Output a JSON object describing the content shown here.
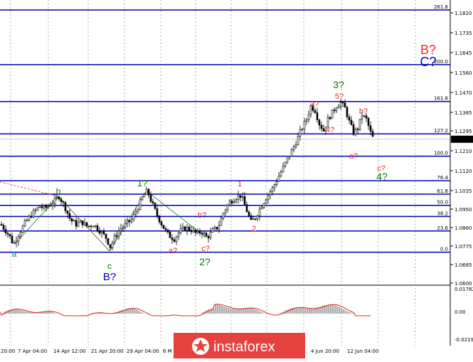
{
  "chart_data": {
    "type": "candlestick",
    "price_axis": {
      "ticks": [
        "1.1820",
        "1.1735",
        "1.1645",
        "1.1560",
        "1.1470",
        "1.1385",
        "1.1295",
        "1.1210",
        "1.1120",
        "1.1035",
        "1.0950",
        "1.0860",
        "1.0775",
        "1.0685",
        "1.0600"
      ],
      "current_price": "1.1241",
      "ylim": [
        1.056,
        1.186
      ]
    },
    "time_axis": {
      "labels": [
        "20:00",
        "7 Apr 04:00",
        "14 Apr 12:00",
        "21 Apr 20:00",
        "29 Apr 04:00",
        "6 M",
        "4 Jun 20:00",
        "12 Jun 04:00"
      ]
    },
    "fib_levels": [
      {
        "label": "261.8",
        "price": 1.182
      },
      {
        "label": "200.0",
        "price": 1.1575
      },
      {
        "label": "161.8",
        "price": 1.141
      },
      {
        "label": "127.2",
        "price": 1.1265
      },
      {
        "label": "100.0",
        "price": 1.1165
      },
      {
        "label": "76.4",
        "price": 1.1055
      },
      {
        "label": "61.8",
        "price": 1.0995
      },
      {
        "label": "50.0",
        "price": 1.0945
      },
      {
        "label": "38.2",
        "price": 1.0895
      },
      {
        "label": "23.6",
        "price": 1.083
      },
      {
        "label": "0.0",
        "price": 1.0735
      }
    ],
    "price_path": [
      [
        0,
        1.086
      ],
      [
        12,
        1.081
      ],
      [
        18,
        1.077
      ],
      [
        25,
        1.0815
      ],
      [
        35,
        1.087
      ],
      [
        45,
        1.091
      ],
      [
        55,
        1.094
      ],
      [
        62,
        1.093
      ],
      [
        72,
        1.0955
      ],
      [
        82,
        1.0985
      ],
      [
        90,
        1.094
      ],
      [
        98,
        1.088
      ],
      [
        106,
        1.086
      ],
      [
        114,
        1.087
      ],
      [
        122,
        1.085
      ],
      [
        130,
        1.086
      ],
      [
        140,
        1.083
      ],
      [
        148,
        1.08
      ],
      [
        154,
        1.076
      ],
      [
        160,
        1.08
      ],
      [
        168,
        1.084
      ],
      [
        176,
        1.086
      ],
      [
        184,
        1.088
      ],
      [
        192,
        1.093
      ],
      [
        200,
        1.0985
      ],
      [
        206,
        1.101
      ],
      [
        212,
        1.096
      ],
      [
        220,
        1.09
      ],
      [
        228,
        1.085
      ],
      [
        236,
        1.081
      ],
      [
        244,
        1.0795
      ],
      [
        252,
        1.083
      ],
      [
        260,
        1.0845
      ],
      [
        268,
        1.0835
      ],
      [
        276,
        1.0815
      ],
      [
        282,
        1.083
      ],
      [
        290,
        1.08
      ],
      [
        298,
        1.083
      ],
      [
        306,
        1.085
      ],
      [
        314,
        1.092
      ],
      [
        322,
        1.096
      ],
      [
        330,
        1.098
      ],
      [
        338,
        1.099
      ],
      [
        346,
        1.092
      ],
      [
        352,
        1.087
      ],
      [
        358,
        1.089
      ],
      [
        366,
        1.094
      ],
      [
        374,
        1.0985
      ],
      [
        382,
        1.102
      ],
      [
        390,
        1.107
      ],
      [
        398,
        1.112
      ],
      [
        406,
        1.117
      ],
      [
        414,
        1.122
      ],
      [
        422,
        1.128
      ],
      [
        430,
        1.133
      ],
      [
        436,
        1.139
      ],
      [
        442,
        1.137
      ],
      [
        448,
        1.131
      ],
      [
        454,
        1.128
      ],
      [
        460,
        1.133
      ],
      [
        466,
        1.136
      ],
      [
        472,
        1.139
      ],
      [
        478,
        1.1405
      ],
      [
        484,
        1.138
      ],
      [
        490,
        1.132
      ],
      [
        496,
        1.127
      ],
      [
        502,
        1.129
      ],
      [
        508,
        1.135
      ],
      [
        514,
        1.133
      ],
      [
        520,
        1.127
      ],
      [
        524,
        1.1241
      ]
    ],
    "wave_labels": [
      {
        "text": "a",
        "color": "#008080"
      },
      {
        "text": "b",
        "color": "#008000"
      },
      {
        "text": "c",
        "color": "#008000"
      },
      {
        "text": "B?",
        "color": "#0000cc"
      },
      {
        "text": "1?",
        "color": "#008000"
      },
      {
        "text": "b?",
        "color": "#e03030"
      },
      {
        "text": "a?",
        "color": "#e03030"
      },
      {
        "text": "c?",
        "color": "#e03030"
      },
      {
        "text": "2?",
        "color": "#008000"
      },
      {
        "text": "1",
        "color": "#e03030"
      },
      {
        "text": "2",
        "color": "#e03030"
      },
      {
        "text": "3?",
        "color": "#e03030"
      },
      {
        "text": "4?",
        "color": "#e03030"
      },
      {
        "text": "3?",
        "color": "#008000"
      },
      {
        "text": "5?",
        "color": "#e03030"
      },
      {
        "text": "b?",
        "color": "#e03030"
      },
      {
        "text": "a?",
        "color": "#e03030"
      },
      {
        "text": "c?",
        "color": "#e03030"
      },
      {
        "text": "4?",
        "color": "#008000"
      },
      {
        "text": "B?",
        "color": "#e03030"
      },
      {
        "text": "C?",
        "color": "#0000cc"
      }
    ],
    "indicator": {
      "ticks": [
        "0.01782",
        "0.00",
        "-0.02198"
      ]
    }
  },
  "watermark": {
    "text": "instaforex"
  }
}
